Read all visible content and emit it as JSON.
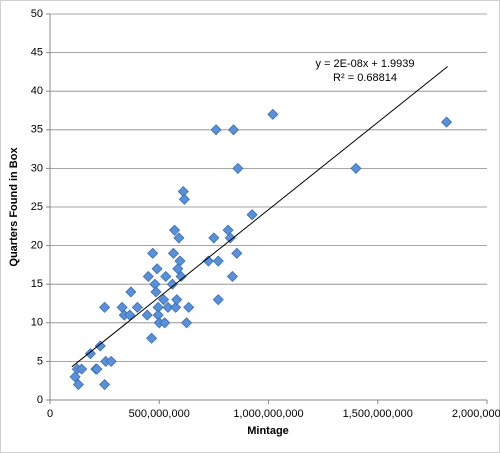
{
  "chart_data": {
    "type": "scatter",
    "x_label": "Mintage",
    "y_label": "Quarters Found in Box",
    "annotations": [
      "y = 2E-08x + 1.9939",
      "R² = 0.68814"
    ],
    "series": [
      {
        "color": "#5b8fd6",
        "x": [
          115000000,
          125000000,
          130000000,
          145000000,
          185000000,
          210000000,
          215000000,
          230000000,
          250000000,
          250000000,
          255000000,
          280000000,
          330000000,
          340000000,
          365000000,
          370000000,
          400000000,
          445000000,
          450000000,
          465000000,
          470000000,
          480000000,
          485000000,
          490000000,
          495000000,
          495000000,
          500000000,
          520000000,
          525000000,
          530000000,
          540000000,
          560000000,
          565000000,
          570000000,
          575000000,
          580000000,
          585000000,
          590000000,
          595000000,
          600000000,
          610000000,
          615000000,
          625000000,
          635000000,
          725000000,
          750000000,
          760000000,
          770000000,
          770000000,
          815000000,
          825000000,
          835000000,
          840000000,
          855000000,
          860000000,
          925000000,
          1020000000,
          1400000000,
          1815000000
        ],
        "values": [
          3,
          4,
          2,
          4,
          6,
          4,
          4,
          7,
          12,
          2,
          5,
          5,
          12,
          11,
          11,
          14,
          12,
          11,
          16,
          8,
          19,
          15,
          14,
          17,
          12,
          11,
          10,
          13,
          10,
          16,
          12,
          15,
          19,
          22,
          12,
          13,
          17,
          21,
          18,
          16,
          27,
          26,
          10,
          12,
          18,
          21,
          35,
          18,
          13,
          22,
          21,
          16,
          35,
          19,
          30,
          24,
          37,
          30,
          36
        ]
      }
    ],
    "trendline": {
      "x": [
        100000000,
        1820000000
      ],
      "values": [
        4.3,
        43.2
      ]
    },
    "xlim": [
      0,
      2000000000
    ],
    "xticks": [
      0,
      {
        "value": 500000000,
        "label": "500,000,000"
      },
      {
        "value": 1000000000,
        "label": "1,000,000,000"
      },
      {
        "value": 1500000000,
        "label": "1,500,000,000"
      },
      {
        "value": 2000000000,
        "label": "2,000,000,000"
      }
    ],
    "ylim": [
      0,
      50
    ],
    "yticks": [
      0,
      5,
      10,
      15,
      20,
      25,
      30,
      35,
      40,
      45,
      50
    ],
    "grid": true
  }
}
